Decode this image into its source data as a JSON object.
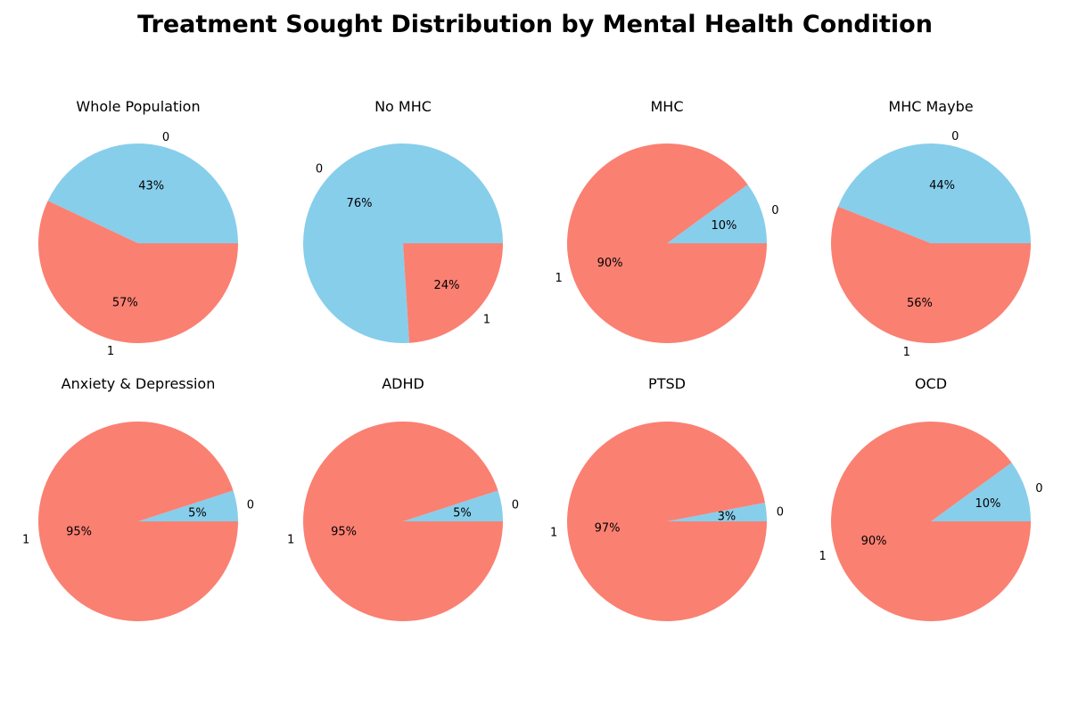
{
  "title": "Treatment Sought Distribution by Mental Health Condition",
  "colors": {
    "0": "#87CEEB",
    "1": "#FA8072"
  },
  "chart_data": {
    "type": "pie",
    "title": "Treatment Sought Distribution by Mental Health Condition",
    "slice_labels": [
      "0",
      "1"
    ],
    "pies": [
      {
        "title": "Whole Population",
        "values": [
          43,
          57
        ],
        "pct_labels": [
          "43%",
          "57%"
        ]
      },
      {
        "title": "No MHC",
        "values": [
          76,
          24
        ],
        "pct_labels": [
          "76%",
          "24%"
        ]
      },
      {
        "title": "MHC",
        "values": [
          10,
          90
        ],
        "pct_labels": [
          "10%",
          "90%"
        ]
      },
      {
        "title": "MHC Maybe",
        "values": [
          44,
          56
        ],
        "pct_labels": [
          "44%",
          "56%"
        ]
      },
      {
        "title": "Anxiety & Depression",
        "values": [
          5,
          95
        ],
        "pct_labels": [
          "5%",
          "95%"
        ]
      },
      {
        "title": "ADHD",
        "values": [
          5,
          95
        ],
        "pct_labels": [
          "5%",
          "95%"
        ]
      },
      {
        "title": "PTSD",
        "values": [
          3,
          97
        ],
        "pct_labels": [
          "3%",
          "97%"
        ]
      },
      {
        "title": "OCD",
        "values": [
          10,
          90
        ],
        "pct_labels": [
          "10%",
          "90%"
        ]
      }
    ]
  }
}
